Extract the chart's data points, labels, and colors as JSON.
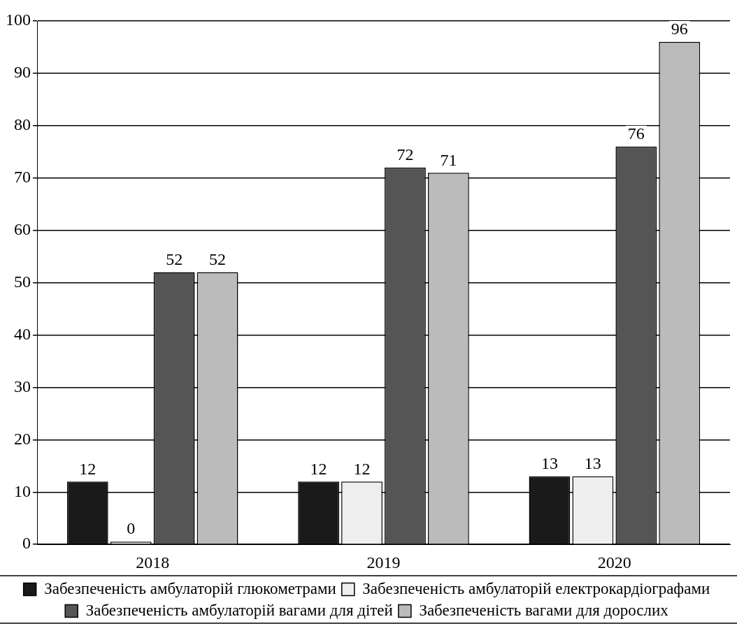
{
  "chart_data": {
    "type": "bar",
    "categories": [
      "2018",
      "2019",
      "2020"
    ],
    "series": [
      {
        "name": "Забезпеченість амбулаторій глюкометрами",
        "color": "#1a1a1a",
        "values": [
          12,
          12,
          13
        ]
      },
      {
        "name": "Забезпеченість амбулаторій електрокардіографами",
        "color": "#eeeeee",
        "values": [
          0,
          12,
          13
        ]
      },
      {
        "name": "Забезпеченість амбулаторій вагами для дітей",
        "color": "#555555",
        "values": [
          52,
          72,
          76
        ]
      },
      {
        "name": "Забезпеченість вагами для дорослих",
        "color": "#bbbbbb",
        "values": [
          52,
          71,
          96
        ]
      }
    ],
    "ylim": [
      0,
      100
    ],
    "yticks": [
      0,
      10,
      20,
      30,
      40,
      50,
      60,
      70,
      80,
      90,
      100
    ],
    "grid": "y",
    "legend": "bottom",
    "data_labels": true
  }
}
